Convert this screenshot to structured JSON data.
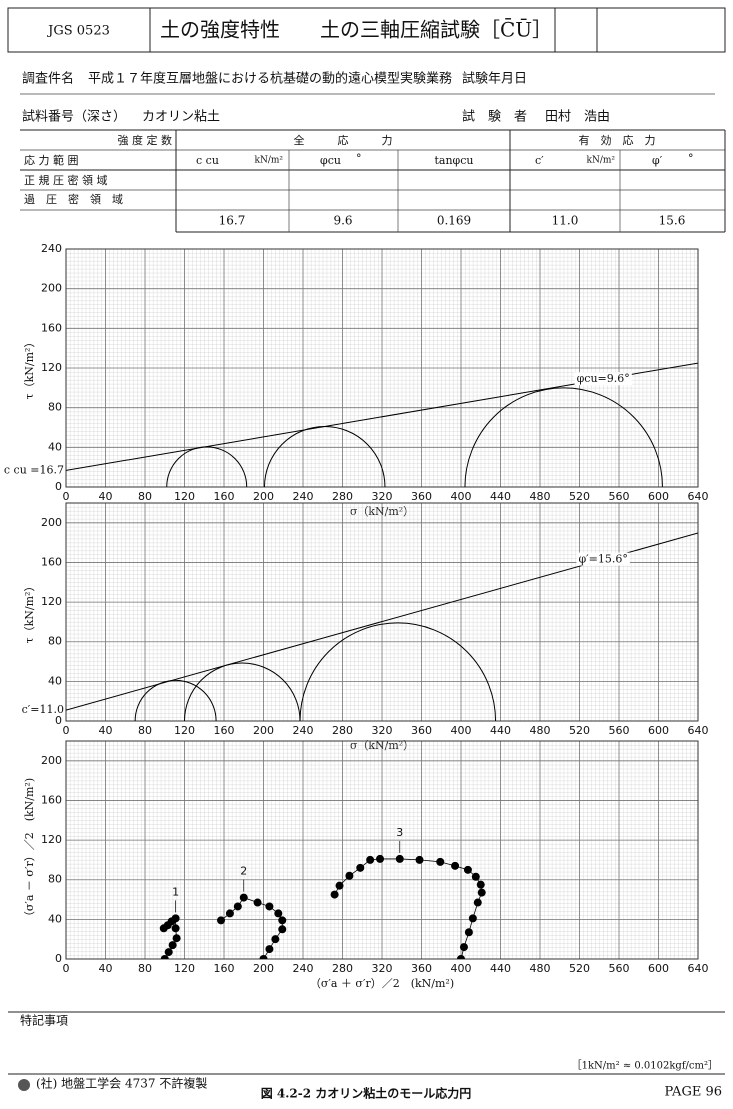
{
  "header": {
    "code": "JGS 0523",
    "title": "土の強度特性　　土の三軸圧縮試験［C̄Ū］"
  },
  "info": {
    "project_label": "調査件名",
    "project": "平成１７年度互層地盤における杭基礎の動的遠心模型実験業務",
    "date_label": "試験年月日",
    "sample_label": "試料番号（深さ）",
    "sample": "カオリン粘土",
    "tester_label": "試　験　者",
    "tester": "田村　浩由"
  },
  "table": {
    "corner_top": "強 度 定 数",
    "corner_bottom": "応 力 範 囲",
    "groups": [
      "全　　　応　　　力",
      "有　効　応　力"
    ],
    "columns": [
      {
        "symbol": "c cu",
        "unit": "kN/m²"
      },
      {
        "symbol": "φcu",
        "unit": "°"
      },
      {
        "symbol": "tanφcu"
      },
      {
        "symbol": "c′",
        "unit": "kN/m²"
      },
      {
        "symbol": "φ′",
        "unit": "°"
      }
    ],
    "rows": [
      "正 規 圧 密 領 域",
      "過　圧　密　領　域"
    ],
    "values": [
      "16.7",
      "9.6",
      "0.169",
      "11.0",
      "15.6"
    ]
  },
  "chart_data": [
    {
      "type": "mohr",
      "xlabel": "σ（kN/m²）",
      "ylabel": "τ（kN/m²）",
      "xlim": [
        0,
        640
      ],
      "ylim": [
        0,
        240
      ],
      "xticks": [
        0,
        40,
        80,
        120,
        160,
        200,
        240,
        280,
        320,
        360,
        400,
        440,
        480,
        520,
        560,
        600,
        640
      ],
      "yticks": [
        0,
        40,
        80,
        120,
        160,
        200,
        240
      ],
      "grid": true,
      "color": "#000000",
      "circles": [
        {
          "sigma3": 102,
          "sigma1": 183
        },
        {
          "sigma3": 201,
          "sigma1": 323
        },
        {
          "sigma3": 404,
          "sigma1": 604
        }
      ],
      "envelope": {
        "c": 16.7,
        "phi": 9.6
      },
      "phi_label": "φcu=9.6°",
      "c_label": "c cu =16.7"
    },
    {
      "type": "mohr",
      "xlabel": "σ（kN/m²）",
      "ylabel": "τ（kN/m²）",
      "xlim": [
        0,
        640
      ],
      "ylim": [
        0,
        220
      ],
      "xticks": [
        0,
        40,
        80,
        120,
        160,
        200,
        240,
        280,
        320,
        360,
        400,
        440,
        480,
        520,
        560,
        600,
        640
      ],
      "yticks": [
        0,
        40,
        80,
        120,
        160,
        200
      ],
      "grid": true,
      "color": "#000000",
      "circles": [
        {
          "sigma3": 70,
          "sigma1": 152
        },
        {
          "sigma3": 120,
          "sigma1": 237
        },
        {
          "sigma3": 237,
          "sigma1": 435
        }
      ],
      "envelope": {
        "c": 11.0,
        "phi": 15.6
      },
      "phi_label": "φ′=15.6°",
      "c_label": "c′=11.0"
    },
    {
      "type": "stress_path",
      "xlabel": "（σ′a ＋ σ′r）／2　(kN/m²)",
      "ylabel": "（σ′a － σ′r）／2　(kN/m²)",
      "xlim": [
        0,
        640
      ],
      "ylim": [
        0,
        220
      ],
      "xticks": [
        0,
        40,
        80,
        120,
        160,
        200,
        240,
        280,
        320,
        360,
        400,
        440,
        480,
        520,
        560,
        600,
        640
      ],
      "yticks": [
        0,
        40,
        80,
        120,
        160,
        200
      ],
      "grid": true,
      "color": "#000000",
      "series": [
        {
          "name": "1",
          "x": [
            100,
            104,
            108,
            112,
            111,
            111,
            107,
            103,
            99
          ],
          "y": [
            0,
            7,
            14,
            21,
            31,
            41,
            38,
            34,
            31
          ]
        },
        {
          "name": "2",
          "x": [
            200,
            206,
            212,
            219,
            219,
            215,
            206,
            194,
            180,
            174,
            166,
            157
          ],
          "y": [
            0,
            10,
            20,
            30,
            39,
            46,
            53,
            57,
            62,
            53,
            46,
            39
          ]
        },
        {
          "name": "3",
          "x": [
            400,
            403,
            408,
            412,
            417,
            421,
            420,
            415,
            407,
            394,
            379,
            358,
            338,
            318,
            308,
            298,
            287,
            277,
            272
          ],
          "y": [
            0,
            12,
            27,
            41,
            57,
            67,
            75,
            83,
            90,
            94,
            98,
            100,
            101,
            101,
            100,
            92,
            84,
            74,
            65
          ]
        }
      ]
    }
  ],
  "footer": {
    "remarks_label": "特記事項",
    "unit_note": "［1kN/m² ≈ 0.0102kgf/cm²］",
    "publisher": "(社) 地盤工学会 4737 不許複製",
    "caption": "図 4.2-2 カオリン粘土のモール応力円",
    "page": "PAGE 96"
  }
}
